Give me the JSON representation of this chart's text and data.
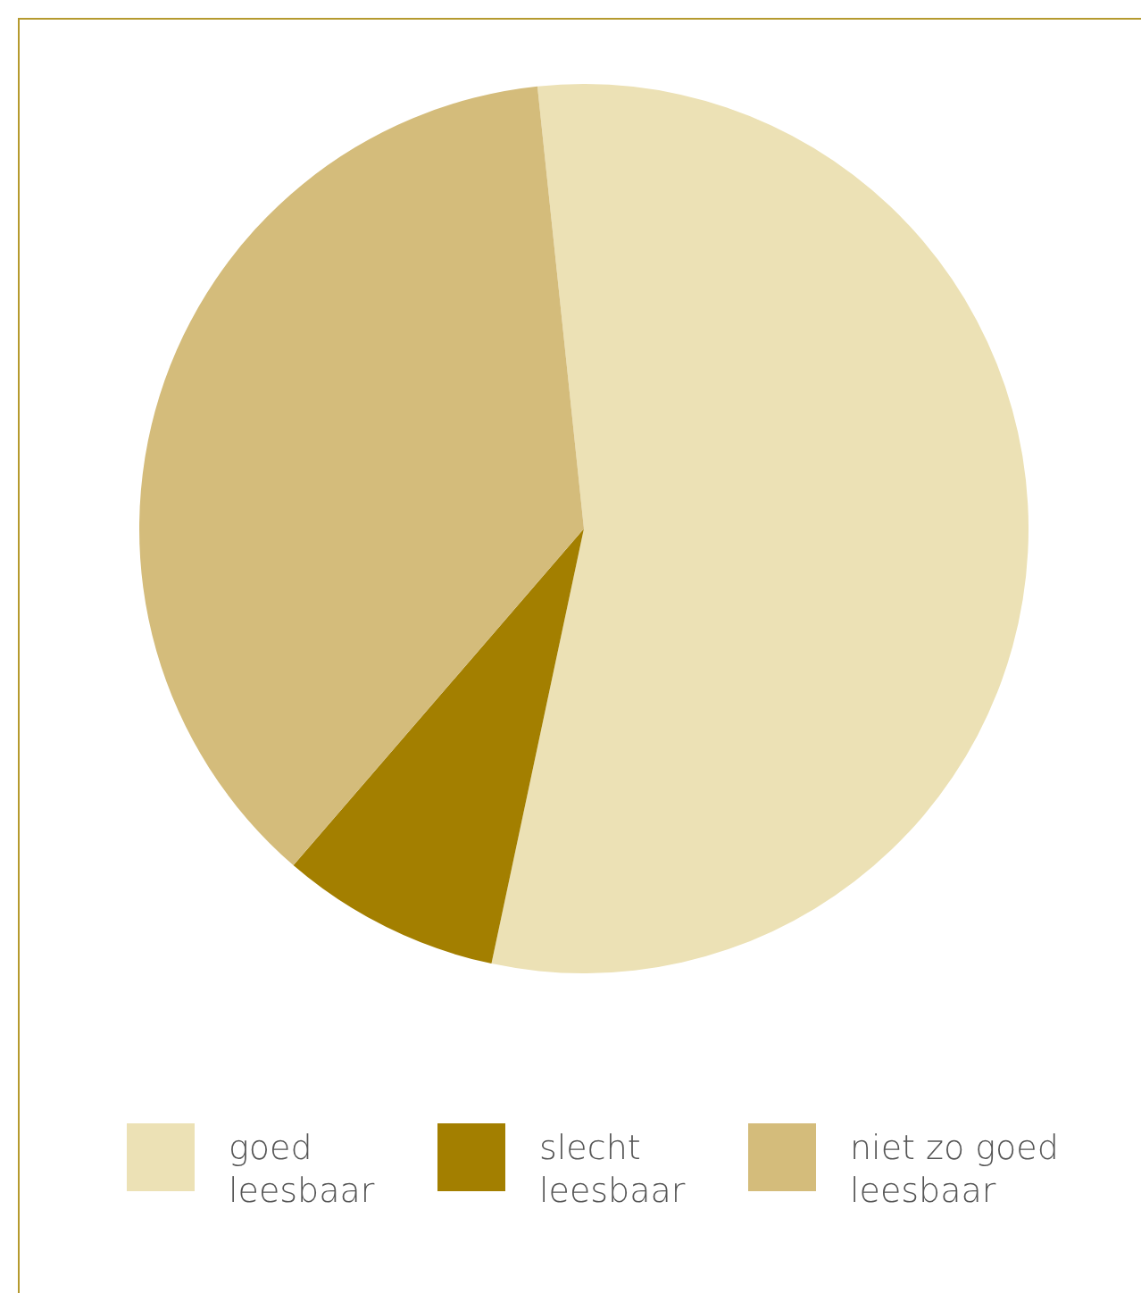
{
  "chart_data": {
    "type": "pie",
    "categories": [
      "goed leesbaar",
      "slecht leesbaar",
      "niet zo goed leesbaar"
    ],
    "values": [
      55,
      8,
      37
    ],
    "colors": [
      "#ece1b5",
      "#a37f00",
      "#d4bc7b"
    ],
    "legend": "bottom"
  }
}
